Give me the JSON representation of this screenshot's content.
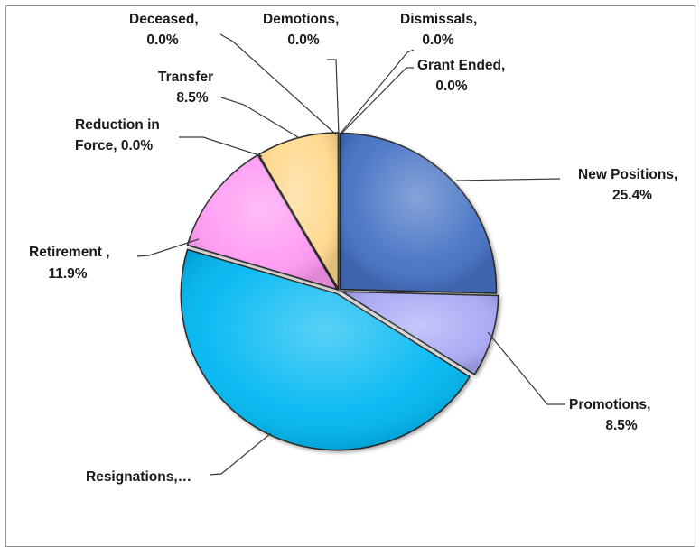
{
  "chart_data": {
    "type": "pie",
    "title": "",
    "unit": "%",
    "slices": [
      {
        "label": "New Positions,",
        "value_text": "25.4%",
        "value": 25.4,
        "color": "#4472C4"
      },
      {
        "label": "Promotions,",
        "value_text": "8.5%",
        "value": 8.5,
        "color": "#A9A8F5"
      },
      {
        "label": "Resignations,…",
        "value_text": "",
        "value": 45.7,
        "color": "#00B8F2"
      },
      {
        "label": "Retirement ,",
        "value_text": "11.9%",
        "value": 11.9,
        "color": "#FF99F2"
      },
      {
        "label": "Reduction in",
        "label2": "Force, 0.0%",
        "value_text": "",
        "value": 0.0,
        "color": "#C0C0C0"
      },
      {
        "label": "Transfer",
        "value_text": "8.5%",
        "value": 8.5,
        "color": "#FFD88C"
      },
      {
        "label": "Deceased,",
        "value_text": "0.0%",
        "value": 0.0,
        "color": "#C0C0C0"
      },
      {
        "label": "Demotions,",
        "value_text": "0.0%",
        "value": 0.0,
        "color": "#C0C0C0"
      },
      {
        "label": "Dismissals,",
        "value_text": "0.0%",
        "value": 0.0,
        "color": "#C0C0C0"
      },
      {
        "label": "Grant Ended,",
        "value_text": "0.0%",
        "value": 0.0,
        "color": "#C0C0C0"
      }
    ]
  }
}
